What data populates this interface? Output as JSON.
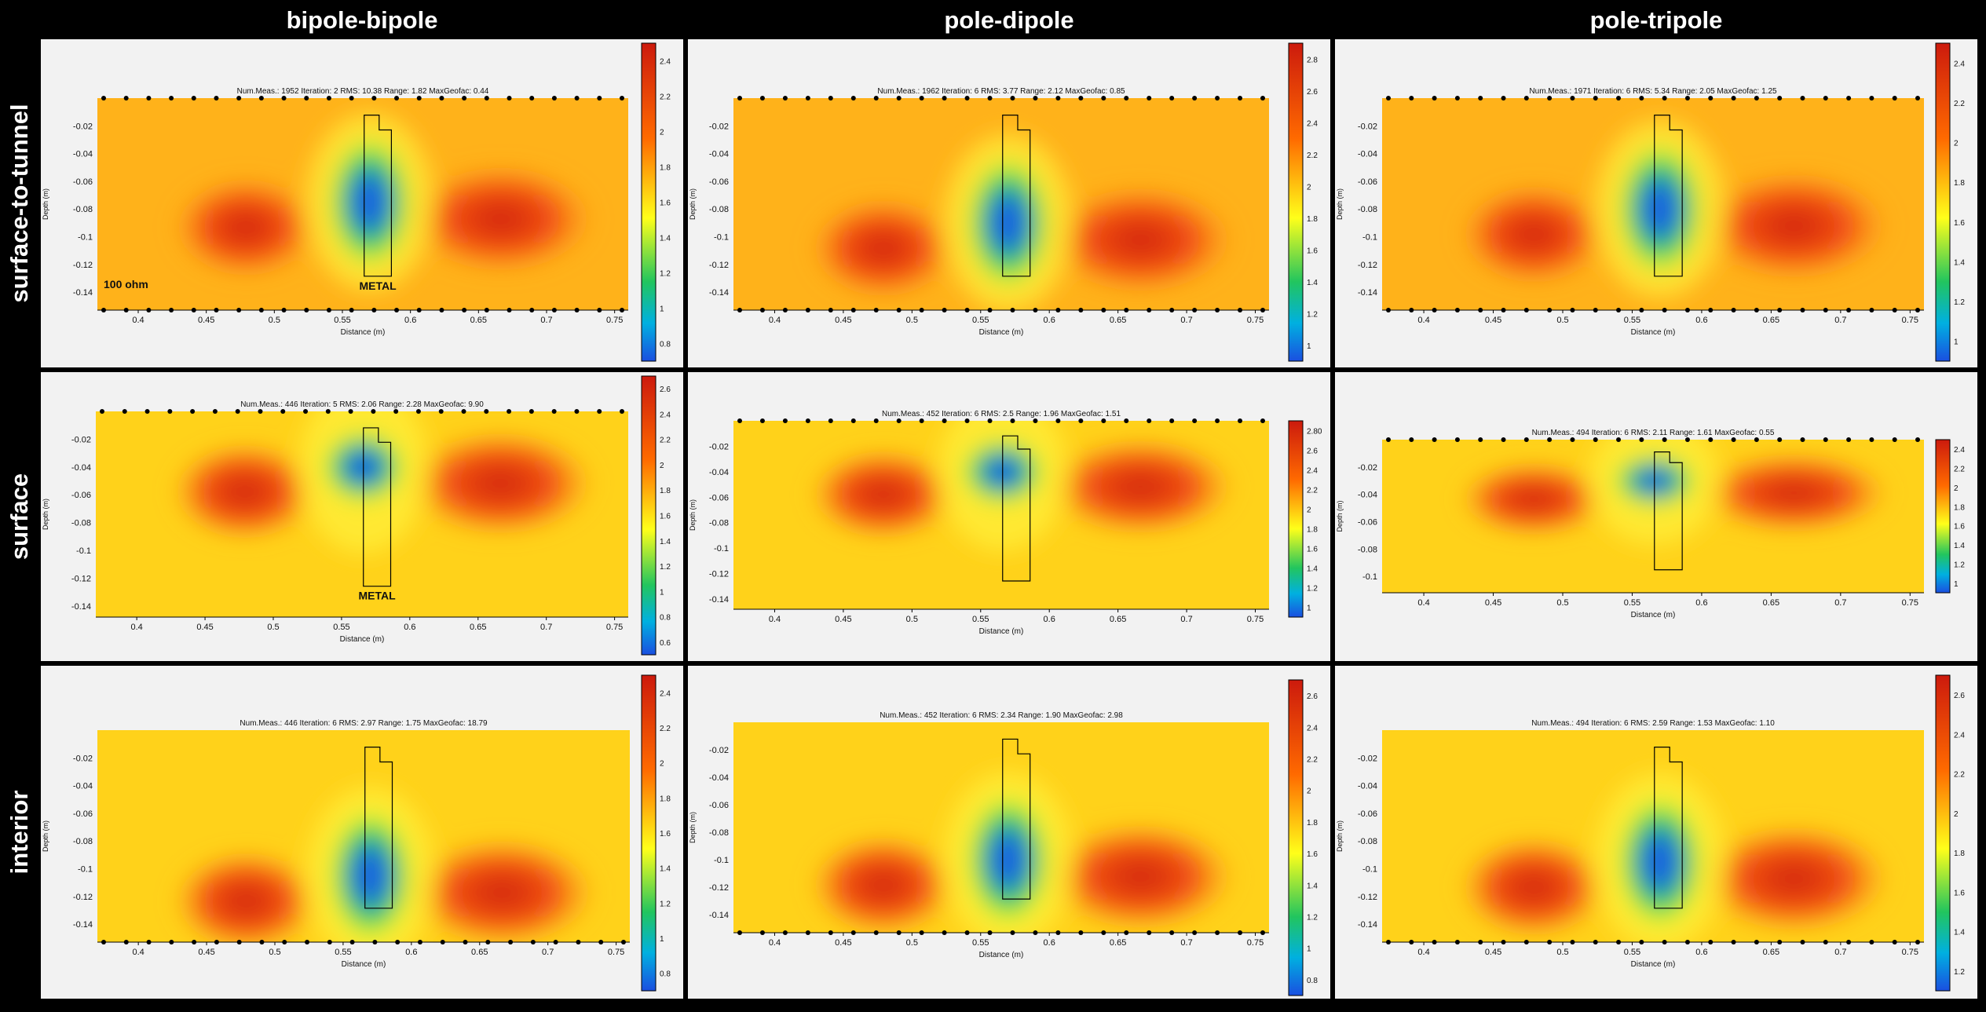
{
  "columns": [
    "bipole-bipole",
    "pole-dipole",
    "pole-tripole"
  ],
  "rows": [
    "surface-to-tunnel",
    "surface",
    "interior"
  ],
  "axis_labels": {
    "x": "Distance (m)",
    "y": "Depth (m)"
  },
  "colors": {
    "low": "#1a4fe0",
    "mid": "#22c55e",
    "high": "#ffff1a",
    "max": "#cc1a0d"
  },
  "chart_data": [
    {
      "type": "heatmap",
      "row": "surface-to-tunnel",
      "column": "bipole-bipole",
      "stats": "Num.Meas.: 1952   Iteration: 2   RMS: 10.38   Range: 1.82   MaxGeofac: 0.44",
      "xticks": [
        "0.4",
        "0.45",
        "0.5",
        "0.55",
        "0.6",
        "0.65",
        "0.7",
        "0.75"
      ],
      "yticks": [
        "-0.02",
        "-0.04",
        "-0.06",
        "-0.08",
        "-0.1",
        "-0.12",
        "-0.14"
      ],
      "cticks": [
        "2.4",
        "2.2",
        "2",
        "1.8",
        "1.6",
        "1.4",
        "1.2",
        "1",
        "0.8"
      ],
      "xlim": [
        0.37,
        0.76
      ],
      "ylim": [
        -0.153,
        0
      ],
      "electrodes": [
        "top",
        "bottom"
      ],
      "annotations": [
        "100 ohm",
        "METAL"
      ],
      "anomaly_center": [
        0.57,
        -0.075
      ]
    },
    {
      "type": "heatmap",
      "row": "surface-to-tunnel",
      "column": "pole-dipole",
      "stats": "Num.Meas.: 1962   Iteration: 6   RMS: 3.77   Range: 2.12   MaxGeofac: 0.85",
      "xticks": [
        "0.4",
        "0.45",
        "0.5",
        "0.55",
        "0.6",
        "0.65",
        "0.7",
        "0.75"
      ],
      "yticks": [
        "-0.02",
        "-0.04",
        "-0.06",
        "-0.08",
        "-0.1",
        "-0.12",
        "-0.14"
      ],
      "cticks": [
        "2.8",
        "2.6",
        "2.4",
        "2.2",
        "2",
        "1.8",
        "1.6",
        "1.4",
        "1.2",
        "1"
      ],
      "xlim": [
        0.37,
        0.76
      ],
      "ylim": [
        -0.153,
        0
      ],
      "electrodes": [
        "top",
        "bottom"
      ],
      "annotations": [],
      "anomaly_center": [
        0.57,
        -0.09
      ]
    },
    {
      "type": "heatmap",
      "row": "surface-to-tunnel",
      "column": "pole-tripole",
      "stats": "Num.Meas.: 1971   Iteration: 6   RMS: 5.34   Range: 2.05   MaxGeofac: 1.25",
      "xticks": [
        "0.4",
        "0.45",
        "0.5",
        "0.55",
        "0.6",
        "0.65",
        "0.7",
        "0.75"
      ],
      "yticks": [
        "-0.02",
        "-0.04",
        "-0.06",
        "-0.08",
        "-0.1",
        "-0.12",
        "-0.14"
      ],
      "cticks": [
        "2.4",
        "2.2",
        "2",
        "1.8",
        "1.6",
        "1.4",
        "1.2",
        "1"
      ],
      "xlim": [
        0.37,
        0.76
      ],
      "ylim": [
        -0.153,
        0
      ],
      "electrodes": [
        "top",
        "bottom"
      ],
      "annotations": [],
      "anomaly_center": [
        0.57,
        -0.08
      ]
    },
    {
      "type": "heatmap",
      "row": "surface",
      "column": "bipole-bipole",
      "stats": "Num.Meas.: 446   Iteration: 5   RMS: 2.06   Range: 2.28   MaxGeofac: 9.90",
      "xticks": [
        "0.4",
        "0.45",
        "0.5",
        "0.55",
        "0.6",
        "0.65",
        "0.7",
        "0.75"
      ],
      "yticks": [
        "-0.02",
        "-0.04",
        "-0.06",
        "-0.08",
        "-0.1",
        "-0.12",
        "-0.14"
      ],
      "cticks": [
        "2.6",
        "2.4",
        "2.2",
        "2",
        "1.8",
        "1.6",
        "1.4",
        "1.2",
        "1",
        "0.8",
        "0.6"
      ],
      "xlim": [
        0.37,
        0.76
      ],
      "ylim": [
        -0.148,
        0
      ],
      "electrodes": [
        "top"
      ],
      "annotations": [
        "METAL"
      ],
      "anomaly_center": [
        0.566,
        -0.04
      ]
    },
    {
      "type": "heatmap",
      "row": "surface",
      "column": "pole-dipole",
      "stats": "Num.Meas.: 452   Iteration: 6   RMS: 2.5   Range: 1.96   MaxGeofac: 1.51",
      "xticks": [
        "0.4",
        "0.45",
        "0.5",
        "0.55",
        "0.6",
        "0.65",
        "0.7",
        "0.75"
      ],
      "yticks": [
        "-0.02",
        "-0.04",
        "-0.06",
        "-0.08",
        "-0.1",
        "-0.12",
        "-0.14"
      ],
      "cticks": [
        "2.80",
        "2.6",
        "2.4",
        "2.2",
        "2",
        "1.8",
        "1.6",
        "1.4",
        "1.2",
        "1"
      ],
      "xlim": [
        0.37,
        0.76
      ],
      "ylim": [
        -0.148,
        0
      ],
      "electrodes": [
        "top"
      ],
      "annotations": [],
      "anomaly_center": [
        0.566,
        -0.04
      ]
    },
    {
      "type": "heatmap",
      "row": "surface",
      "column": "pole-tripole",
      "stats": "Num.Meas.: 494   Iteration: 6   RMS: 2.11   Range: 1.61   MaxGeofac: 0.55",
      "xticks": [
        "0.4",
        "0.45",
        "0.5",
        "0.55",
        "0.6",
        "0.65",
        "0.7",
        "0.75"
      ],
      "yticks": [
        "-0.02",
        "-0.04",
        "-0.06",
        "-0.08",
        "-0.1"
      ],
      "cticks": [
        "2.4",
        "2.2",
        "2",
        "1.8",
        "1.6",
        "1.4",
        "1.2",
        "1"
      ],
      "xlim": [
        0.37,
        0.76
      ],
      "ylim": [
        -0.112,
        0
      ],
      "electrodes": [
        "top"
      ],
      "annotations": [],
      "anomaly_center": [
        0.566,
        -0.03
      ]
    },
    {
      "type": "heatmap",
      "row": "interior",
      "column": "bipole-bipole",
      "stats": "Num.Meas.: 446   Iteration: 6   RMS: 2.97   Range: 1.75   MaxGeofac: 18.79",
      "xticks": [
        "0.4",
        "0.45",
        "0.5",
        "0.55",
        "0.6",
        "0.65",
        "0.7",
        "0.75"
      ],
      "yticks": [
        "-0.02",
        "-0.04",
        "-0.06",
        "-0.08",
        "-0.1",
        "-0.12",
        "-0.14"
      ],
      "cticks": [
        "2.4",
        "2.2",
        "2",
        "1.8",
        "1.6",
        "1.4",
        "1.2",
        "1",
        "0.8"
      ],
      "xlim": [
        0.37,
        0.76
      ],
      "ylim": [
        -0.153,
        0
      ],
      "electrodes": [
        "bottom"
      ],
      "annotations": [],
      "anomaly_center": [
        0.57,
        -0.105
      ]
    },
    {
      "type": "heatmap",
      "row": "interior",
      "column": "pole-dipole",
      "stats": "Num.Meas.: 452   Iteration: 6   RMS: 2.34   Range: 1.90   MaxGeofac: 2.98",
      "xticks": [
        "0.4",
        "0.45",
        "0.5",
        "0.55",
        "0.6",
        "0.65",
        "0.7",
        "0.75"
      ],
      "yticks": [
        "-0.02",
        "-0.04",
        "-0.06",
        "-0.08",
        "-0.1",
        "-0.12",
        "-0.14"
      ],
      "cticks": [
        "2.6",
        "2.4",
        "2.2",
        "2",
        "1.8",
        "1.6",
        "1.4",
        "1.2",
        "1",
        "0.8"
      ],
      "xlim": [
        0.37,
        0.76
      ],
      "ylim": [
        -0.153,
        0
      ],
      "electrodes": [
        "bottom"
      ],
      "annotations": [],
      "anomaly_center": [
        0.57,
        -0.1
      ]
    },
    {
      "type": "heatmap",
      "row": "interior",
      "column": "pole-tripole",
      "stats": "Num.Meas.: 494   Iteration: 6   RMS: 2.59   Range: 1.53   MaxGeofac: 1.10",
      "xticks": [
        "0.4",
        "0.45",
        "0.5",
        "0.55",
        "0.6",
        "0.65",
        "0.7",
        "0.75"
      ],
      "yticks": [
        "-0.02",
        "-0.04",
        "-0.06",
        "-0.08",
        "-0.1",
        "-0.12",
        "-0.14"
      ],
      "cticks": [
        "2.6",
        "2.4",
        "2.2",
        "2",
        "1.8",
        "1.6",
        "1.4",
        "1.2"
      ],
      "xlim": [
        0.37,
        0.76
      ],
      "ylim": [
        -0.153,
        0
      ],
      "electrodes": [
        "bottom"
      ],
      "annotations": [],
      "anomaly_center": [
        0.57,
        -0.095
      ]
    }
  ]
}
